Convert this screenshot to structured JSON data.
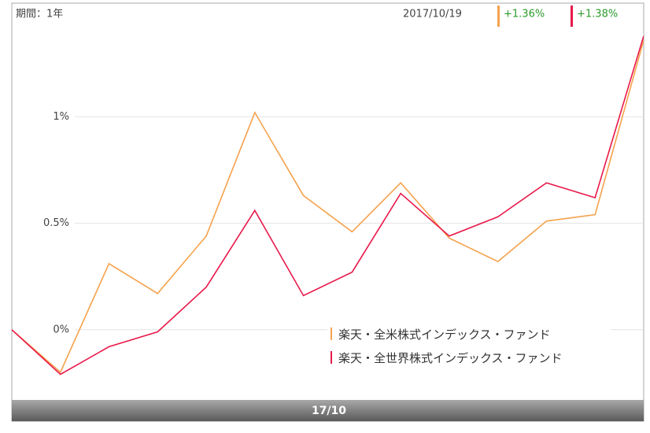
{
  "chart_data": {
    "type": "line",
    "period": "期間：1年",
    "date": "2017/10/19",
    "x_band_label": "17/10",
    "x": [
      1,
      2,
      3,
      4,
      5,
      6,
      7,
      8,
      9,
      10,
      11,
      12,
      13,
      14
    ],
    "xlim": [
      1,
      14
    ],
    "ylim": [
      -0.33,
      1.53
    ],
    "yticks": [
      {
        "value": 0,
        "label": "0%"
      },
      {
        "value": 0.5,
        "label": "0.5%"
      },
      {
        "value": 1,
        "label": "1%"
      }
    ],
    "grid": true,
    "legend": "bottom-right",
    "series": [
      {
        "name": "楽天・全米株式インデックス・ファンド",
        "color": "#f5a24c",
        "values": [
          0,
          -0.2,
          0.31,
          0.17,
          0.44,
          1.02,
          0.63,
          0.46,
          0.69,
          0.43,
          0.32,
          0.51,
          0.54,
          1.36
        ],
        "value_labels": [
          null,
          null,
          null,
          null,
          null,
          null,
          null,
          null,
          null,
          null,
          null,
          null,
          null,
          "+1.36%"
        ]
      },
      {
        "name": "楽天・全世界株式インデックス・ファンド",
        "color": "#e8194a",
        "values": [
          0,
          -0.21,
          -0.08,
          -0.01,
          0.2,
          0.56,
          0.16,
          0.27,
          0.64,
          0.44,
          0.53,
          0.69,
          0.62,
          1.38
        ],
        "value_labels": [
          null,
          null,
          null,
          null,
          null,
          null,
          null,
          null,
          null,
          null,
          null,
          null,
          null,
          "+1.38%"
        ]
      }
    ]
  }
}
